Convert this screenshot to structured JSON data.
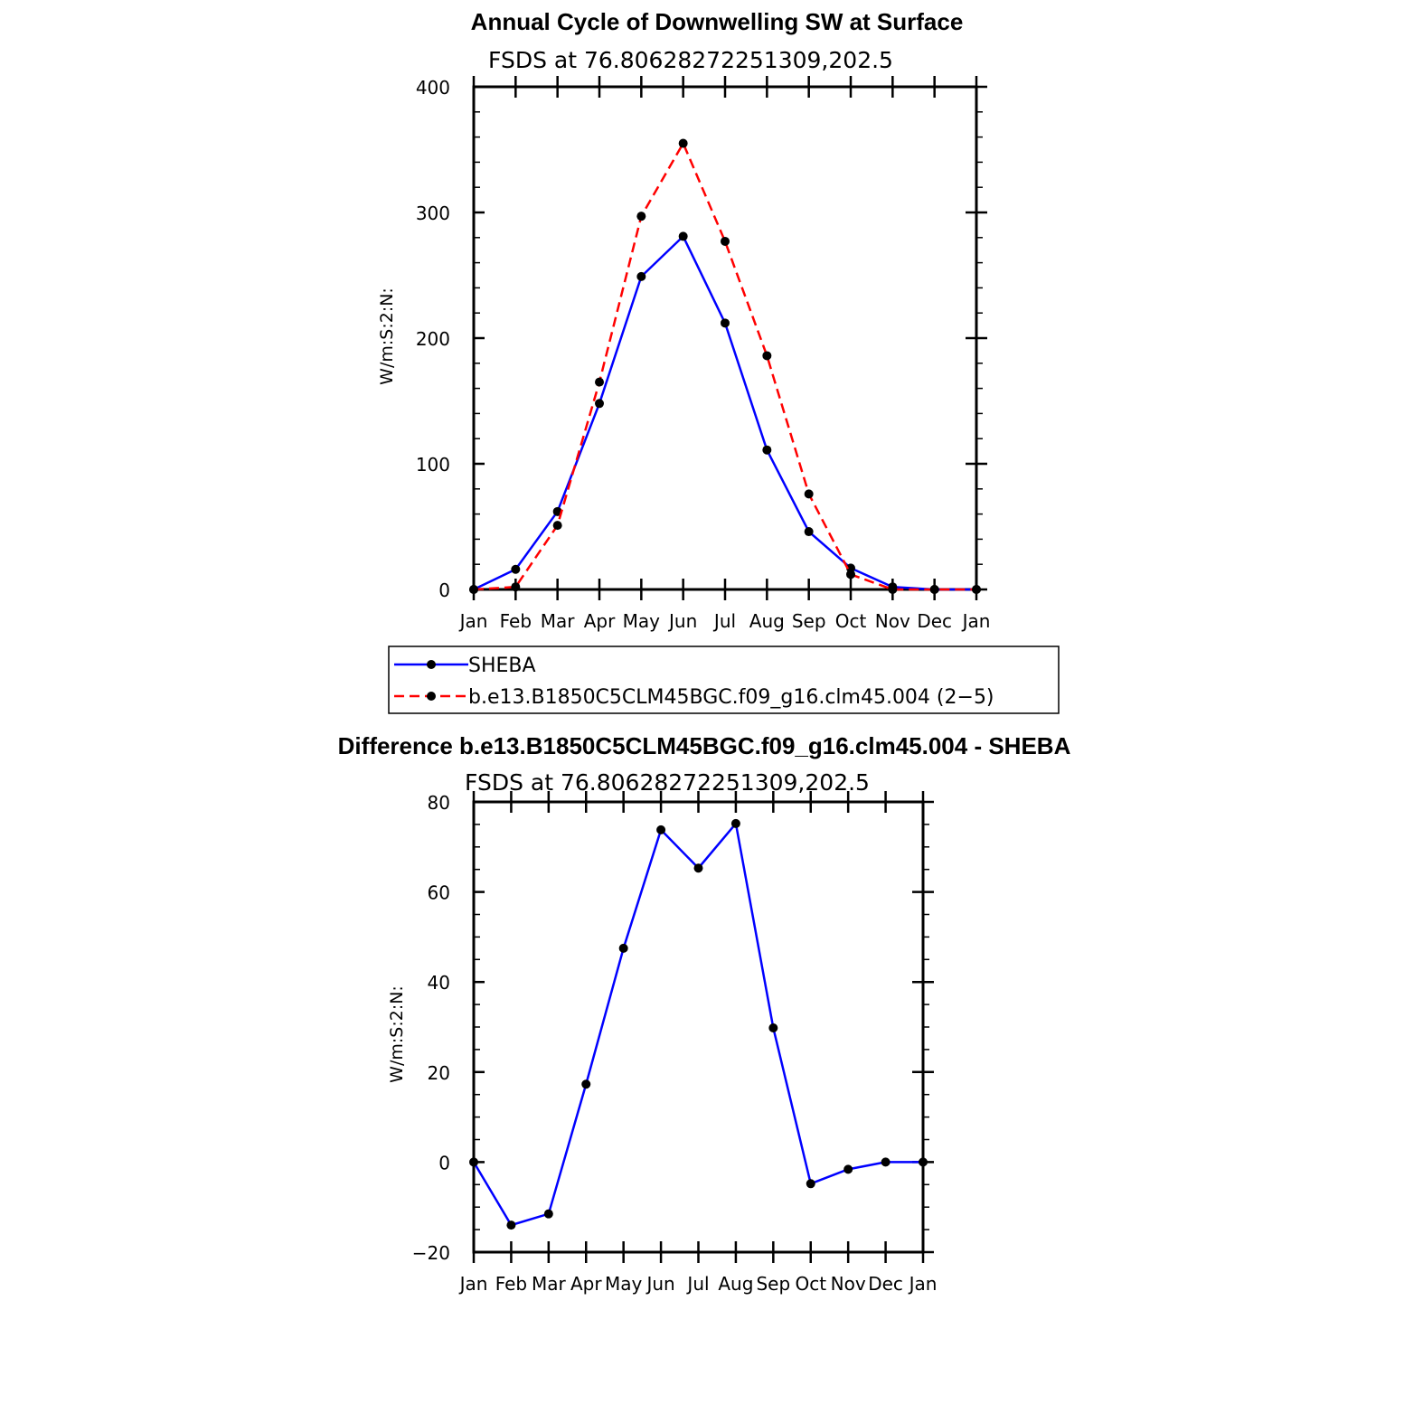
{
  "chart_data": [
    {
      "type": "line",
      "title": "Annual Cycle of Downwelling SW at Surface",
      "subtitle": "FSDS at 76.80628272251309,202.5",
      "xlabel": "",
      "ylabel": "W/m:S:2:N:",
      "categories": [
        "Jan",
        "Feb",
        "Mar",
        "Apr",
        "May",
        "Jun",
        "Jul",
        "Aug",
        "Sep",
        "Oct",
        "Nov",
        "Dec",
        "Jan"
      ],
      "ylim": [
        0,
        400
      ],
      "yticks": [
        0,
        100,
        200,
        300,
        400
      ],
      "grid": false,
      "legend_position": "bottom",
      "series": [
        {
          "name": "SHEBA",
          "color": "#0000ff",
          "dash": "solid",
          "values": [
            0,
            16,
            62,
            148,
            249,
            281,
            212,
            111,
            46,
            17,
            2,
            0,
            0
          ]
        },
        {
          "name": "b.e13.B1850C5CLM45BGC.f09_g16.clm45.004 (2−5)",
          "color": "#ff0000",
          "dash": "dashed",
          "values": [
            0,
            2,
            51,
            165,
            297,
            355,
            277,
            186,
            76,
            12,
            0,
            0,
            0
          ]
        }
      ]
    },
    {
      "type": "line",
      "title": "Difference b.e13.B1850C5CLM45BGC.f09_g16.clm45.004 - SHEBA",
      "subtitle": "FSDS at 76.80628272251309,202.5",
      "xlabel": "",
      "ylabel": "W/m:S:2:N:",
      "categories": [
        "Jan",
        "Feb",
        "Mar",
        "Apr",
        "May",
        "Jun",
        "Jul",
        "Aug",
        "Sep",
        "Oct",
        "Nov",
        "Dec",
        "Jan"
      ],
      "ylim": [
        -20,
        80
      ],
      "yticks": [
        -20,
        0,
        20,
        40,
        60,
        80
      ],
      "ytick_labels": [
        "−20",
        "0",
        "20",
        "40",
        "60",
        "80"
      ],
      "grid": false,
      "series": [
        {
          "name": "",
          "color": "#0000ff",
          "dash": "solid",
          "values": [
            0,
            -14,
            -11.5,
            17.3,
            47.5,
            73.8,
            65.3,
            75.2,
            29.8,
            -4.8,
            -1.6,
            0,
            0
          ]
        }
      ]
    }
  ]
}
